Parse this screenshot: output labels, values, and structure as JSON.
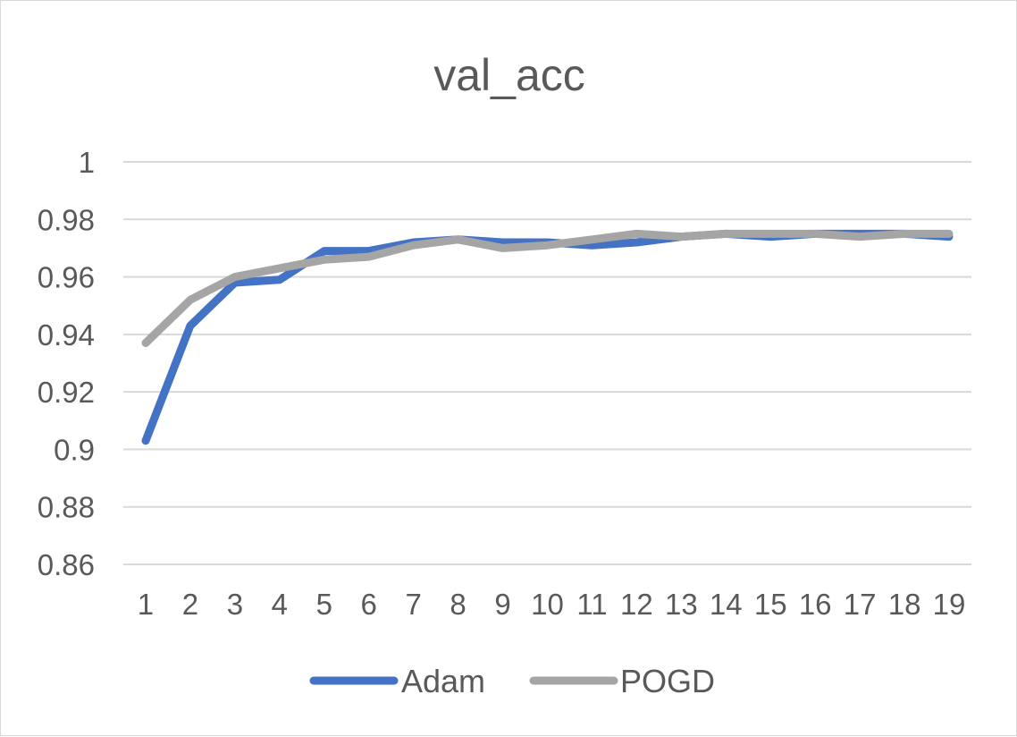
{
  "chart_data": {
    "type": "line",
    "title": "val_acc",
    "xlabel": "",
    "ylabel": "",
    "categories": [
      "1",
      "2",
      "3",
      "4",
      "5",
      "6",
      "7",
      "8",
      "9",
      "10",
      "11",
      "12",
      "13",
      "14",
      "15",
      "16",
      "17",
      "18",
      "19"
    ],
    "ylim": [
      0.86,
      1
    ],
    "yticks": [
      1,
      0.98,
      0.96,
      0.94,
      0.92,
      0.9,
      0.88,
      0.86
    ],
    "ytick_labels": [
      "1",
      "0.98",
      "0.96",
      "0.94",
      "0.92",
      "0.9",
      "0.88",
      "0.86"
    ],
    "grid": true,
    "legend_position": "bottom",
    "series": [
      {
        "name": "Adam",
        "color": "#4472C4",
        "values": [
          0.903,
          0.943,
          0.958,
          0.959,
          0.969,
          0.969,
          0.972,
          0.973,
          0.972,
          0.972,
          0.971,
          0.972,
          0.974,
          0.975,
          0.974,
          0.975,
          0.975,
          0.975,
          0.974
        ]
      },
      {
        "name": "POGD",
        "color": "#A5A5A5",
        "values": [
          0.937,
          0.952,
          0.96,
          0.963,
          0.966,
          0.967,
          0.971,
          0.973,
          0.97,
          0.971,
          0.973,
          0.975,
          0.974,
          0.975,
          0.975,
          0.975,
          0.974,
          0.975,
          0.975
        ]
      }
    ]
  }
}
